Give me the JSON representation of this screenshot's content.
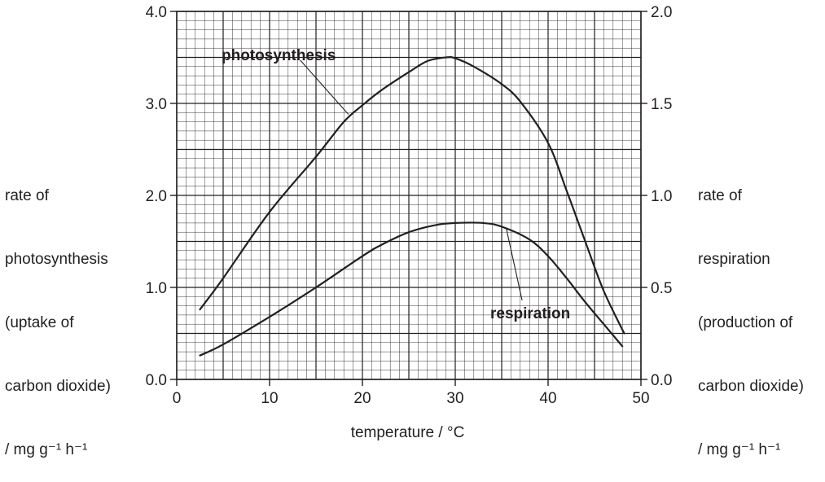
{
  "chart_data": {
    "type": "line",
    "xlabel": "temperature / °C",
    "ylabel_left": {
      "lines": [
        "rate of",
        "photosynthesis",
        "(uptake of",
        "carbon dioxide)"
      ],
      "unit": "/ mg g⁻¹ h⁻¹"
    },
    "ylabel_right": {
      "lines": [
        "rate of",
        "respiration",
        "(production of",
        "carbon dioxide)"
      ],
      "unit": "/ mg g⁻¹ h⁻¹"
    },
    "xlim": [
      0,
      50
    ],
    "ylim_left": [
      0,
      4
    ],
    "ylim_right": [
      0,
      2
    ],
    "x_ticks": [
      "0",
      "10",
      "20",
      "30",
      "40",
      "50"
    ],
    "y_ticks_left": [
      "0.0",
      "1.0",
      "2.0",
      "3.0",
      "4.0"
    ],
    "y_ticks_right": [
      "0.0",
      "0.5",
      "1.0",
      "1.5",
      "2.0"
    ],
    "grid": true,
    "series": [
      {
        "name": "photosynthesis",
        "axis": "left",
        "points": [
          [
            2.5,
            0.76
          ],
          [
            5,
            1.1
          ],
          [
            10,
            1.82
          ],
          [
            15,
            2.42
          ],
          [
            18,
            2.8
          ],
          [
            20,
            2.98
          ],
          [
            22,
            3.14
          ],
          [
            25,
            3.34
          ],
          [
            27,
            3.46
          ],
          [
            29,
            3.5
          ],
          [
            30,
            3.49
          ],
          [
            32,
            3.4
          ],
          [
            35,
            3.21
          ],
          [
            37,
            3.02
          ],
          [
            40,
            2.57
          ],
          [
            42,
            2.05
          ],
          [
            44,
            1.5
          ],
          [
            46,
            0.96
          ],
          [
            48.2,
            0.5
          ]
        ]
      },
      {
        "name": "respiration",
        "axis": "right",
        "points": [
          [
            2.5,
            0.13
          ],
          [
            5,
            0.19
          ],
          [
            10,
            0.34
          ],
          [
            15,
            0.5
          ],
          [
            20,
            0.67
          ],
          [
            22,
            0.73
          ],
          [
            25,
            0.8
          ],
          [
            28,
            0.84
          ],
          [
            30,
            0.85
          ],
          [
            33,
            0.85
          ],
          [
            35,
            0.83
          ],
          [
            38,
            0.76
          ],
          [
            40,
            0.67
          ],
          [
            42,
            0.55
          ],
          [
            44,
            0.42
          ],
          [
            46,
            0.3
          ],
          [
            48,
            0.18
          ]
        ]
      }
    ],
    "annotations": [
      {
        "text": "photosynthesis",
        "target_series": "photosynthesis"
      },
      {
        "text": "respiration",
        "target_series": "respiration"
      }
    ]
  }
}
